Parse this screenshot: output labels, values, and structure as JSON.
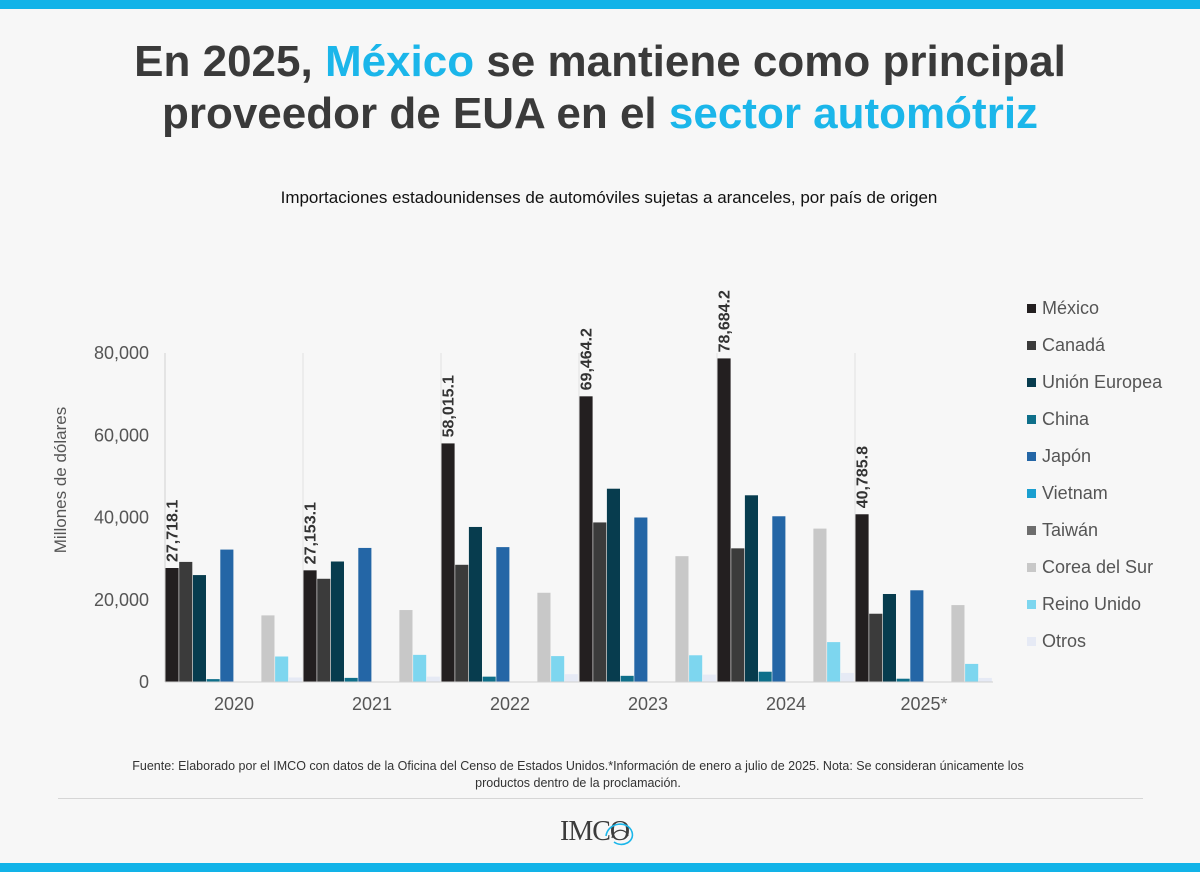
{
  "header": {
    "title_line1_a": "En 2025, ",
    "title_line1_b": "México",
    "title_line1_c": " se mantiene como principal",
    "title_line2_a": "proveedor de EUA en el ",
    "title_line2_b": "sector automótriz"
  },
  "colors": {
    "accent": "#1bb6ea",
    "title": "#3a3a3a",
    "bar_top": "#12b3e8"
  },
  "chart_data": {
    "type": "bar",
    "title": "Importaciones estadounidenses de automóviles sujetas a aranceles, por país de origen",
    "xlabel": "",
    "ylabel": "Millones de dólares",
    "ylim": [
      0,
      80000
    ],
    "yticks": [
      0,
      20000,
      40000,
      60000,
      80000
    ],
    "ytick_labels": [
      "0",
      "20,000",
      "40,000",
      "60,000",
      "80,000"
    ],
    "categories": [
      "2020",
      "2021",
      "2022",
      "2023",
      "2024",
      "2025*"
    ],
    "legend_position": "right",
    "series": [
      {
        "name": "México",
        "color": "#231f20",
        "values": [
          27718.1,
          27153.1,
          58015.1,
          69464.2,
          78684.2,
          40785.8
        ],
        "data_labels": [
          "27,718.1",
          "27,153.1",
          "58,015.1",
          "69,464.2",
          "78,684.2",
          "40,785.8"
        ]
      },
      {
        "name": "Canadá",
        "color": "#3b3b3b",
        "values": [
          29200,
          25100,
          28500,
          38800,
          32500,
          16600
        ]
      },
      {
        "name": "Unión Europea",
        "color": "#073c4e",
        "values": [
          26000,
          29300,
          37700,
          47000,
          45400,
          21400
        ]
      },
      {
        "name": "China",
        "color": "#0e6f8a",
        "values": [
          700,
          1000,
          1300,
          1500,
          2500,
          800
        ]
      },
      {
        "name": "Japón",
        "color": "#2466a6",
        "values": [
          32200,
          32600,
          32800,
          40000,
          40300,
          22300
        ]
      },
      {
        "name": "Vietnam",
        "color": "#1a9fd0",
        "values": [
          0,
          0,
          0,
          0,
          0,
          0
        ]
      },
      {
        "name": "Taiwán",
        "color": "#6d6d6d",
        "values": [
          0,
          0,
          0,
          0,
          0,
          0
        ]
      },
      {
        "name": "Corea del Sur",
        "color": "#c8c8c8",
        "values": [
          16200,
          17500,
          21700,
          30600,
          37300,
          18700
        ]
      },
      {
        "name": "Reino Unido",
        "color": "#7dd6ef",
        "values": [
          6200,
          6600,
          6300,
          6500,
          9700,
          4400
        ]
      },
      {
        "name": "Otros",
        "color": "#e6eaf5",
        "values": [
          1100,
          1300,
          1900,
          1800,
          2200,
          1000
        ]
      }
    ]
  },
  "footer": {
    "source_line1": "Fuente: Elaborado por el IMCO con datos de la Oficina del Censo de Estados Unidos.*Información de enero a julio de 2025. Nota: Se consideran únicamente los",
    "source_line2": "productos dentro de la proclamación.",
    "logo_text": "IMCO"
  }
}
